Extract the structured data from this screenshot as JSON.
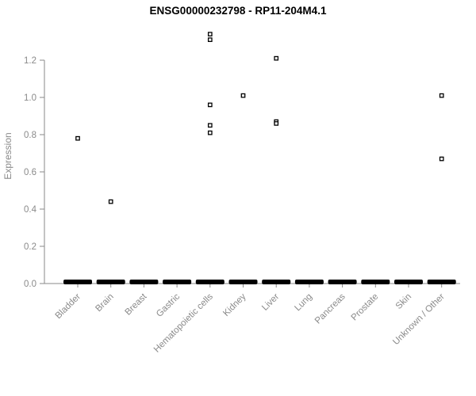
{
  "chart_data": {
    "type": "scatter",
    "title": "ENSG00000232798 - RP11-204M4.1",
    "ylabel": "Expression",
    "xlabel": "",
    "categories": [
      "Bladder",
      "Brain",
      "Breast",
      "Gastric",
      "Hematopoietic cells",
      "Kidney",
      "Liver",
      "Lung",
      "Pancreas",
      "Prostate",
      "Skin",
      "Unknown / Other"
    ],
    "points": {
      "Bladder": [
        0.78
      ],
      "Brain": [
        0.44
      ],
      "Breast": [],
      "Gastric": [],
      "Hematopoietic cells": [
        1.34,
        1.31,
        0.96,
        0.85,
        0.81
      ],
      "Kidney": [
        1.01
      ],
      "Liver": [
        1.21,
        0.87,
        0.86
      ],
      "Lung": [],
      "Pancreas": [],
      "Prostate": [],
      "Skin": [],
      "Unknown / Other": [
        1.01,
        0.67
      ]
    },
    "zero_cluster_all_categories": true,
    "yticks": [
      0.0,
      0.2,
      0.4,
      0.6,
      0.8,
      1.0,
      1.2
    ],
    "ylim": [
      0,
      1.4
    ],
    "marker": "open-square",
    "grid": false,
    "legend": false,
    "colors": {
      "point": "#000000",
      "axis": "#8a8a8a",
      "title": "#000000"
    }
  }
}
